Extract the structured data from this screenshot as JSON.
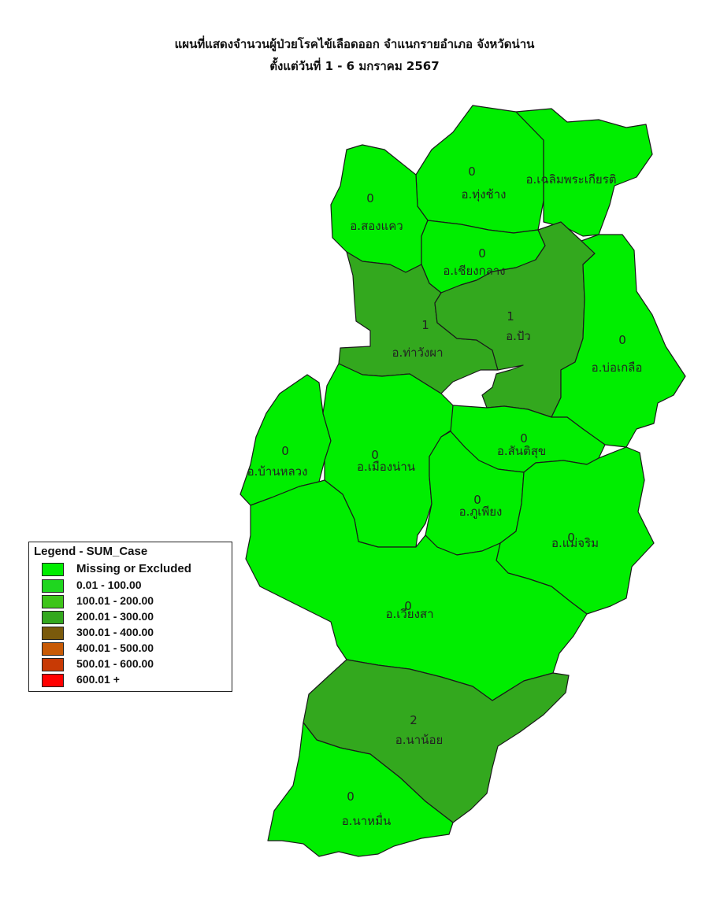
{
  "title": {
    "line1": "แผนที่แสดงจำนวนผู้ป่วยโรคไข้เลือดออก จำแนกรายอำเภอ จังหวัดน่าน",
    "line2": "ตั้งแต่วันที่ 1  - 6 มกราคม 2567"
  },
  "colors": {
    "missing": "#00ee00",
    "c0_100": "#1fd61f",
    "c100_200": "#3ec51a",
    "c200_300": "#33a81e",
    "c300_400": "#7a5a0c",
    "c400_500": "#c85a05",
    "c500_600": "#c83a05",
    "c600": "#ff0000",
    "border": "#1a1a1a"
  },
  "districts": [
    {
      "id": "thung-chang",
      "name": "อ.ทุ่งช้าง",
      "value": "0"
    },
    {
      "id": "chaloem",
      "name": "อ.เฉลิมพระเกียรติ",
      "value": ""
    },
    {
      "id": "song-khwae",
      "name": "อ.สองแคว",
      "value": "0"
    },
    {
      "id": "chiang-klang",
      "name": "อ.เชียงกลาง",
      "value": "0"
    },
    {
      "id": "tha-wang-pha",
      "name": "อ.ท่าวังผา",
      "value": "1"
    },
    {
      "id": "pua",
      "name": "อ.ปัว",
      "value": "1"
    },
    {
      "id": "bo-kluea",
      "name": "อ.บ่อเกลือ",
      "value": "0"
    },
    {
      "id": "ban-luang",
      "name": "อ.บ้านหลวง",
      "value": "0"
    },
    {
      "id": "mueang-nan",
      "name": "อ.เมืองน่าน",
      "value": "0"
    },
    {
      "id": "santi-suk",
      "name": "อ.สันติสุข",
      "value": "0"
    },
    {
      "id": "phu-phiang",
      "name": "อ.ภูเพียง",
      "value": "0"
    },
    {
      "id": "mae-charim",
      "name": "อ.แม่จริม",
      "value": "0"
    },
    {
      "id": "wiang-sa",
      "name": "อ.เวียงสา",
      "value": "0"
    },
    {
      "id": "na-noi",
      "name": "อ.นาน้อย",
      "value": "2"
    },
    {
      "id": "na-muen",
      "name": "อ.นาหมื่น",
      "value": "0"
    }
  ],
  "legend": {
    "title": "Legend - SUM_Case",
    "items": [
      {
        "label": "Missing or Excluded",
        "color": "#00ee00"
      },
      {
        "label": "0.01 - 100.00",
        "color": "#1fd61f"
      },
      {
        "label": "100.01 - 200.00",
        "color": "#3ec51a"
      },
      {
        "label": "200.01 - 300.00",
        "color": "#33a81e"
      },
      {
        "label": "300.01 - 400.00",
        "color": "#7a5a0c"
      },
      {
        "label": "400.01 - 500.00",
        "color": "#c85a05"
      },
      {
        "label": "500.01 - 600.00",
        "color": "#c83a05"
      },
      {
        "label": "600.01 +",
        "color": "#ff0000"
      }
    ]
  }
}
